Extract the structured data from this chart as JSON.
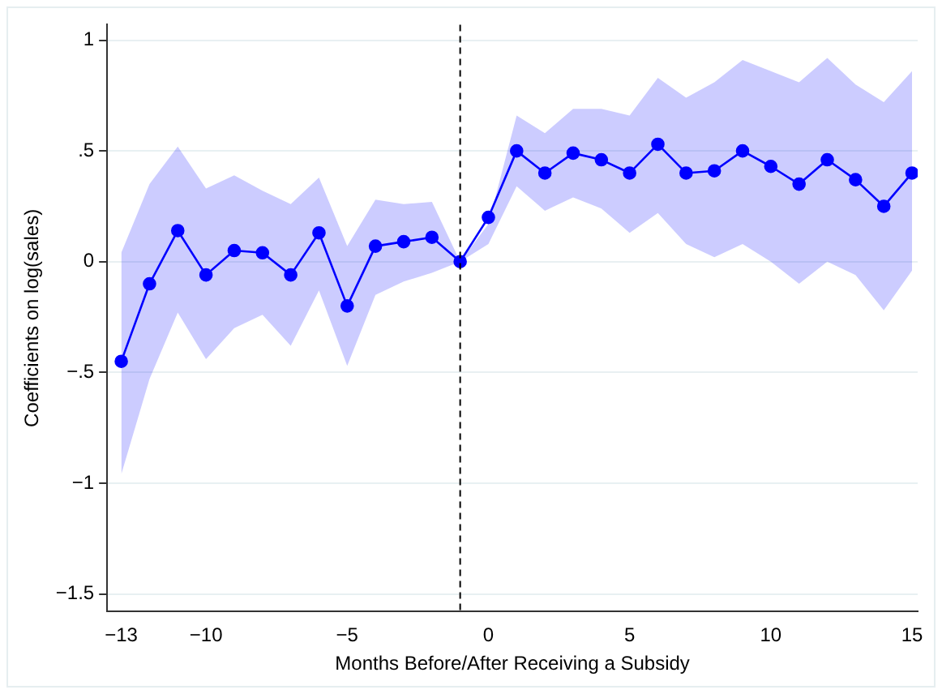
{
  "chart_data": {
    "type": "line",
    "xlabel": "Months Before/After Receiving a Subsidy",
    "ylabel": "Coefficients on log(sales)",
    "x": [
      -13,
      -12,
      -11,
      -10,
      -9,
      -8,
      -7,
      -6,
      -5,
      -4,
      -3,
      -2,
      -1,
      0,
      1,
      2,
      3,
      4,
      5,
      6,
      7,
      8,
      9,
      10,
      11,
      12,
      13,
      14,
      15
    ],
    "series": [
      {
        "color": "#0000ff",
        "values": [
          -0.45,
          -0.1,
          0.14,
          -0.06,
          0.05,
          0.04,
          -0.06,
          0.13,
          -0.2,
          0.07,
          0.09,
          0.11,
          0,
          0.2,
          0.5,
          0.4,
          0.49,
          0.46,
          0.4,
          0.53,
          0.4,
          0.41,
          0.5,
          0.43,
          0.35,
          0.46,
          0.37,
          0.25,
          0.4
        ],
        "lower": [
          -0.96,
          -0.53,
          -0.23,
          -0.44,
          -0.3,
          -0.24,
          -0.38,
          -0.13,
          -0.47,
          -0.15,
          -0.09,
          -0.05,
          0,
          0.08,
          0.34,
          0.23,
          0.29,
          0.24,
          0.13,
          0.22,
          0.08,
          0.02,
          0.08,
          0.0,
          -0.1,
          0.0,
          -0.06,
          -0.22,
          -0.04
        ],
        "upper": [
          0.04,
          0.35,
          0.52,
          0.33,
          0.39,
          0.32,
          0.26,
          0.38,
          0.07,
          0.28,
          0.26,
          0.27,
          0,
          0.17,
          0.66,
          0.58,
          0.69,
          0.69,
          0.66,
          0.83,
          0.74,
          0.81,
          0.91,
          0.86,
          0.81,
          0.92,
          0.8,
          0.72,
          0.86
        ]
      }
    ],
    "xlim": [
      -13.5,
      15.2
    ],
    "ylim": [
      -1.58,
      1.07
    ],
    "xticks": [
      {
        "value": -13,
        "label": "−13"
      },
      {
        "value": -10,
        "label": "−10"
      },
      {
        "value": -5,
        "label": "−5"
      },
      0,
      5,
      10,
      15
    ],
    "yticks": [
      {
        "value": -1.5,
        "label": "−1.5"
      },
      {
        "value": -1,
        "label": "−1"
      },
      {
        "value": -0.5,
        "label": "−.5"
      },
      0,
      {
        "value": 0.5,
        "label": ".5"
      },
      1
    ],
    "ref_lines": [
      {
        "axis": "x",
        "value": -1,
        "color": "#000000",
        "line_style": "dashed"
      }
    ],
    "grid": "y",
    "legend": false,
    "marker": "circle",
    "line_style": "solid"
  }
}
